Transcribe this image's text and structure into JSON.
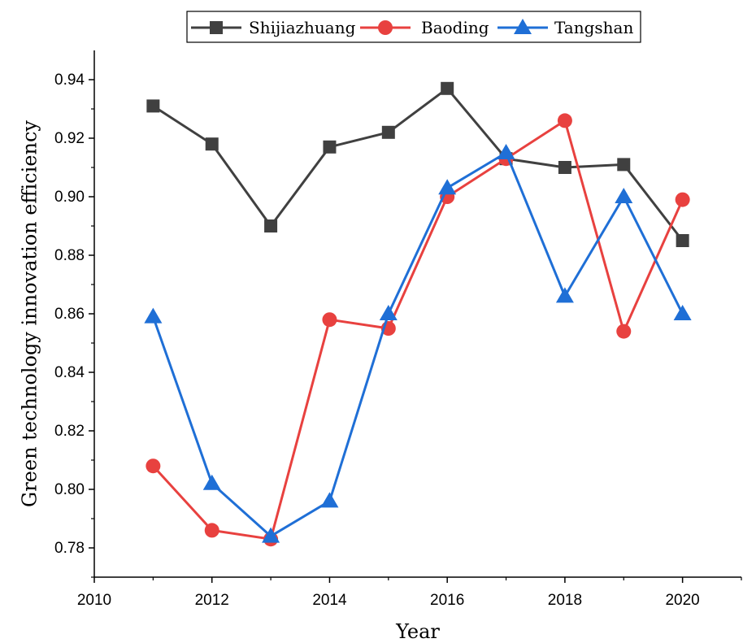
{
  "chart_data": {
    "type": "line",
    "xlabel": "Year",
    "ylabel": "Green technology innovation efficiency",
    "xlim": [
      2010,
      2021
    ],
    "ylim": [
      0.77,
      0.95
    ],
    "xticks": [
      "2010",
      "2012",
      "2014",
      "2016",
      "2018",
      "2020"
    ],
    "yticks": [
      "0.78",
      "0.80",
      "0.82",
      "0.84",
      "0.86",
      "0.88",
      "0.90",
      "0.92",
      "0.94"
    ],
    "legend_position": "top",
    "grid": false,
    "x": [
      2011,
      2012,
      2013,
      2014,
      2015,
      2016,
      2017,
      2018,
      2019,
      2020
    ],
    "series": [
      {
        "name": "Shijiazhuang",
        "color": "#404040",
        "marker": "square",
        "values": [
          0.931,
          0.918,
          0.89,
          0.917,
          0.922,
          0.937,
          0.913,
          0.91,
          0.911,
          0.885
        ]
      },
      {
        "name": "Baoding",
        "color": "#e8413f",
        "marker": "circle",
        "values": [
          0.808,
          0.786,
          0.783,
          0.858,
          0.855,
          0.9,
          0.913,
          0.926,
          0.854,
          0.899
        ]
      },
      {
        "name": "Tangshan",
        "color": "#1f6fd6",
        "marker": "triangle",
        "values": [
          0.859,
          0.802,
          0.784,
          0.796,
          0.86,
          0.903,
          0.915,
          0.866,
          0.9,
          0.86
        ]
      }
    ]
  }
}
